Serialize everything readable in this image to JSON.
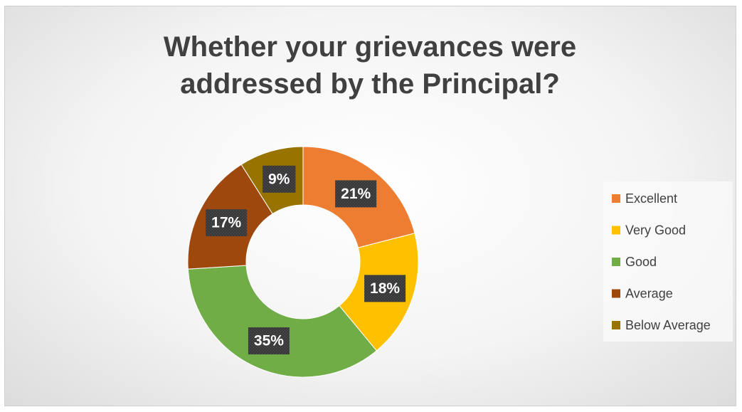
{
  "chart_data": {
    "type": "doughnut",
    "title": "Whether your grievances were addressed by the Principal?",
    "categories": [
      "Excellent",
      "Very Good",
      "Good",
      "Average",
      "Below Average"
    ],
    "values": [
      21,
      18,
      35,
      17,
      9
    ],
    "value_labels": [
      "21%",
      "18%",
      "35%",
      "17%",
      "9%"
    ],
    "colors": [
      "#ED7D31",
      "#FFC000",
      "#70AD47",
      "#9E480E",
      "#997300"
    ],
    "legend": "right"
  }
}
